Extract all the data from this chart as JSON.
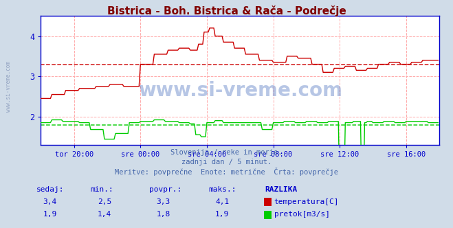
{
  "title": "Bistrica - Boh. Bistrica & Rača - Podrečje",
  "title_color": "#800000",
  "bg_color": "#d0dce8",
  "plot_bg_color": "#ffffff",
  "grid_color": "#ffaaaa",
  "axis_color": "#0000cc",
  "tick_label_color": "#0000cc",
  "temp_color": "#cc0000",
  "flow_color": "#00cc00",
  "avg_temp": 3.3,
  "avg_flow": 1.8,
  "ylim": [
    1.3,
    4.5
  ],
  "xlim": [
    0,
    288
  ],
  "xtick_positions": [
    24,
    72,
    120,
    168,
    216,
    264
  ],
  "xtick_labels": [
    "tor 20:00",
    "sre 00:00",
    "sre 04:00",
    "sre 08:00",
    "sre 12:00",
    "sre 16:00"
  ],
  "subtitle1": "Slovenija / reke in morje.",
  "subtitle2": "zadnji dan / 5 minut.",
  "subtitle3": "Meritve: povprečne  Enote: metrične  Črta: povprečje",
  "subtitle_color": "#4466aa",
  "watermark": "www.si-vreme.com",
  "watermark_color": "#1144aa",
  "left_watermark": "www.si-vreme.com",
  "left_watermark_color": "#8899bb",
  "figsize": [
    6.59,
    3.32
  ],
  "dpi": 100,
  "headers": [
    "sedaj:",
    "min.:",
    "povpr.:",
    "maks.:",
    "RAZLIKA"
  ],
  "row1_vals": [
    "3,4",
    "2,5",
    "3,3",
    "4,1"
  ],
  "row2_vals": [
    "1,9",
    "1,4",
    "1,8",
    "1,9"
  ],
  "row1_label": "temperatura[C]",
  "row2_label": "pretok[m3/s]",
  "table_color": "#0000cc"
}
